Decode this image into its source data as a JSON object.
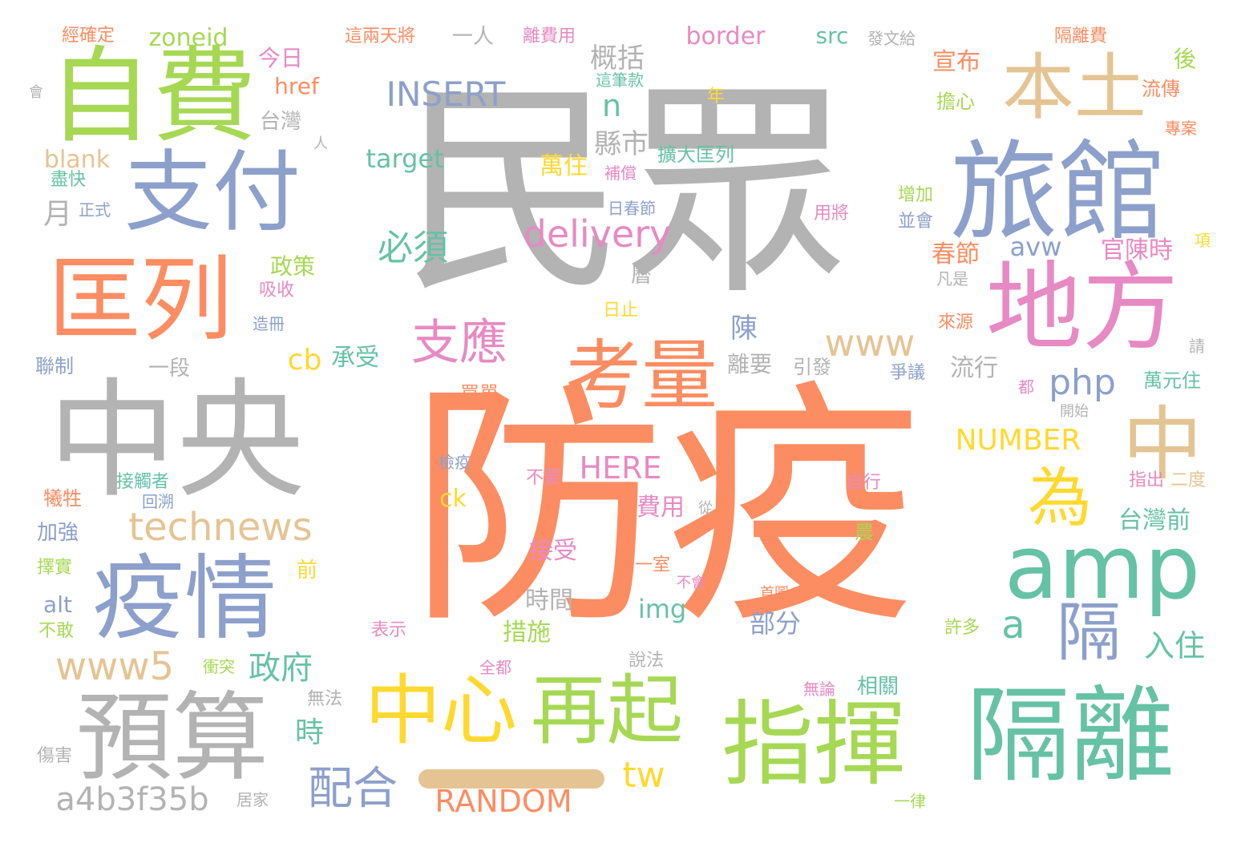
{
  "palette": {
    "gray": "#b3b3b3",
    "orange": "#fc8d62",
    "green": "#a6d854",
    "blue": "#8da0cb",
    "teal": "#66c2a5",
    "tan": "#e5c494",
    "pink": "#e78ac3",
    "yellow": "#ffd92f"
  },
  "words": [
    "民眾",
    "防疫",
    "中央",
    "自費",
    "支付",
    "匡列",
    "疫情",
    "預算",
    "旅館",
    "本土",
    "地方",
    "amp",
    "隔離",
    "指揮",
    "考量",
    "中心",
    "再起",
    "中",
    "為",
    "隔",
    "a",
    "支應",
    "technews",
    "www5",
    "a4b3f35b",
    "delivery",
    "www",
    "php",
    "NUMBER",
    "INSERT",
    "RANDOM",
    "HERE",
    "tw",
    "配合",
    "政府",
    "時",
    "cb",
    "承受",
    "必須",
    "n",
    "概括",
    "縣市",
    "萬住",
    "avw",
    "官陳時",
    "春節",
    "宣布",
    "流行",
    "入住",
    "台灣前",
    "陳",
    "離要",
    "引發",
    "部分",
    "時間",
    "措施",
    "接受",
    "費用",
    "img",
    "ck",
    "政策",
    "今日",
    "href",
    "台灣",
    "月",
    "blank",
    "target",
    "zoneid",
    "border",
    "src",
    "後",
    "擔心",
    "流傳",
    "隔離費",
    "發文給",
    "這兩天將",
    "離費用",
    "一人",
    "經確定",
    "會",
    "人",
    "這筆款",
    "年",
    "補償",
    "擴大匡列",
    "日春節",
    "用將",
    "增加",
    "並會",
    "正式",
    "盡快",
    "吸收",
    "造冊",
    "曆",
    "日止",
    "凡是",
    "來源",
    "聯制",
    "一段",
    "請",
    "萬元住",
    "專案",
    "項",
    "都",
    "開始",
    "買單",
    "爭議",
    "檢疫",
    "不要",
    "自行",
    "指出",
    "二度",
    "犧牲",
    "接觸者",
    "回溯",
    "從",
    "加強",
    "農",
    "擇實",
    "前",
    "一室",
    "不會",
    "首圖",
    "alt",
    "不敢",
    "表示",
    "許多",
    "衝突",
    "全都",
    "說法",
    "無論",
    "相關",
    "無法",
    "傷害",
    "居家",
    "一律"
  ]
}
